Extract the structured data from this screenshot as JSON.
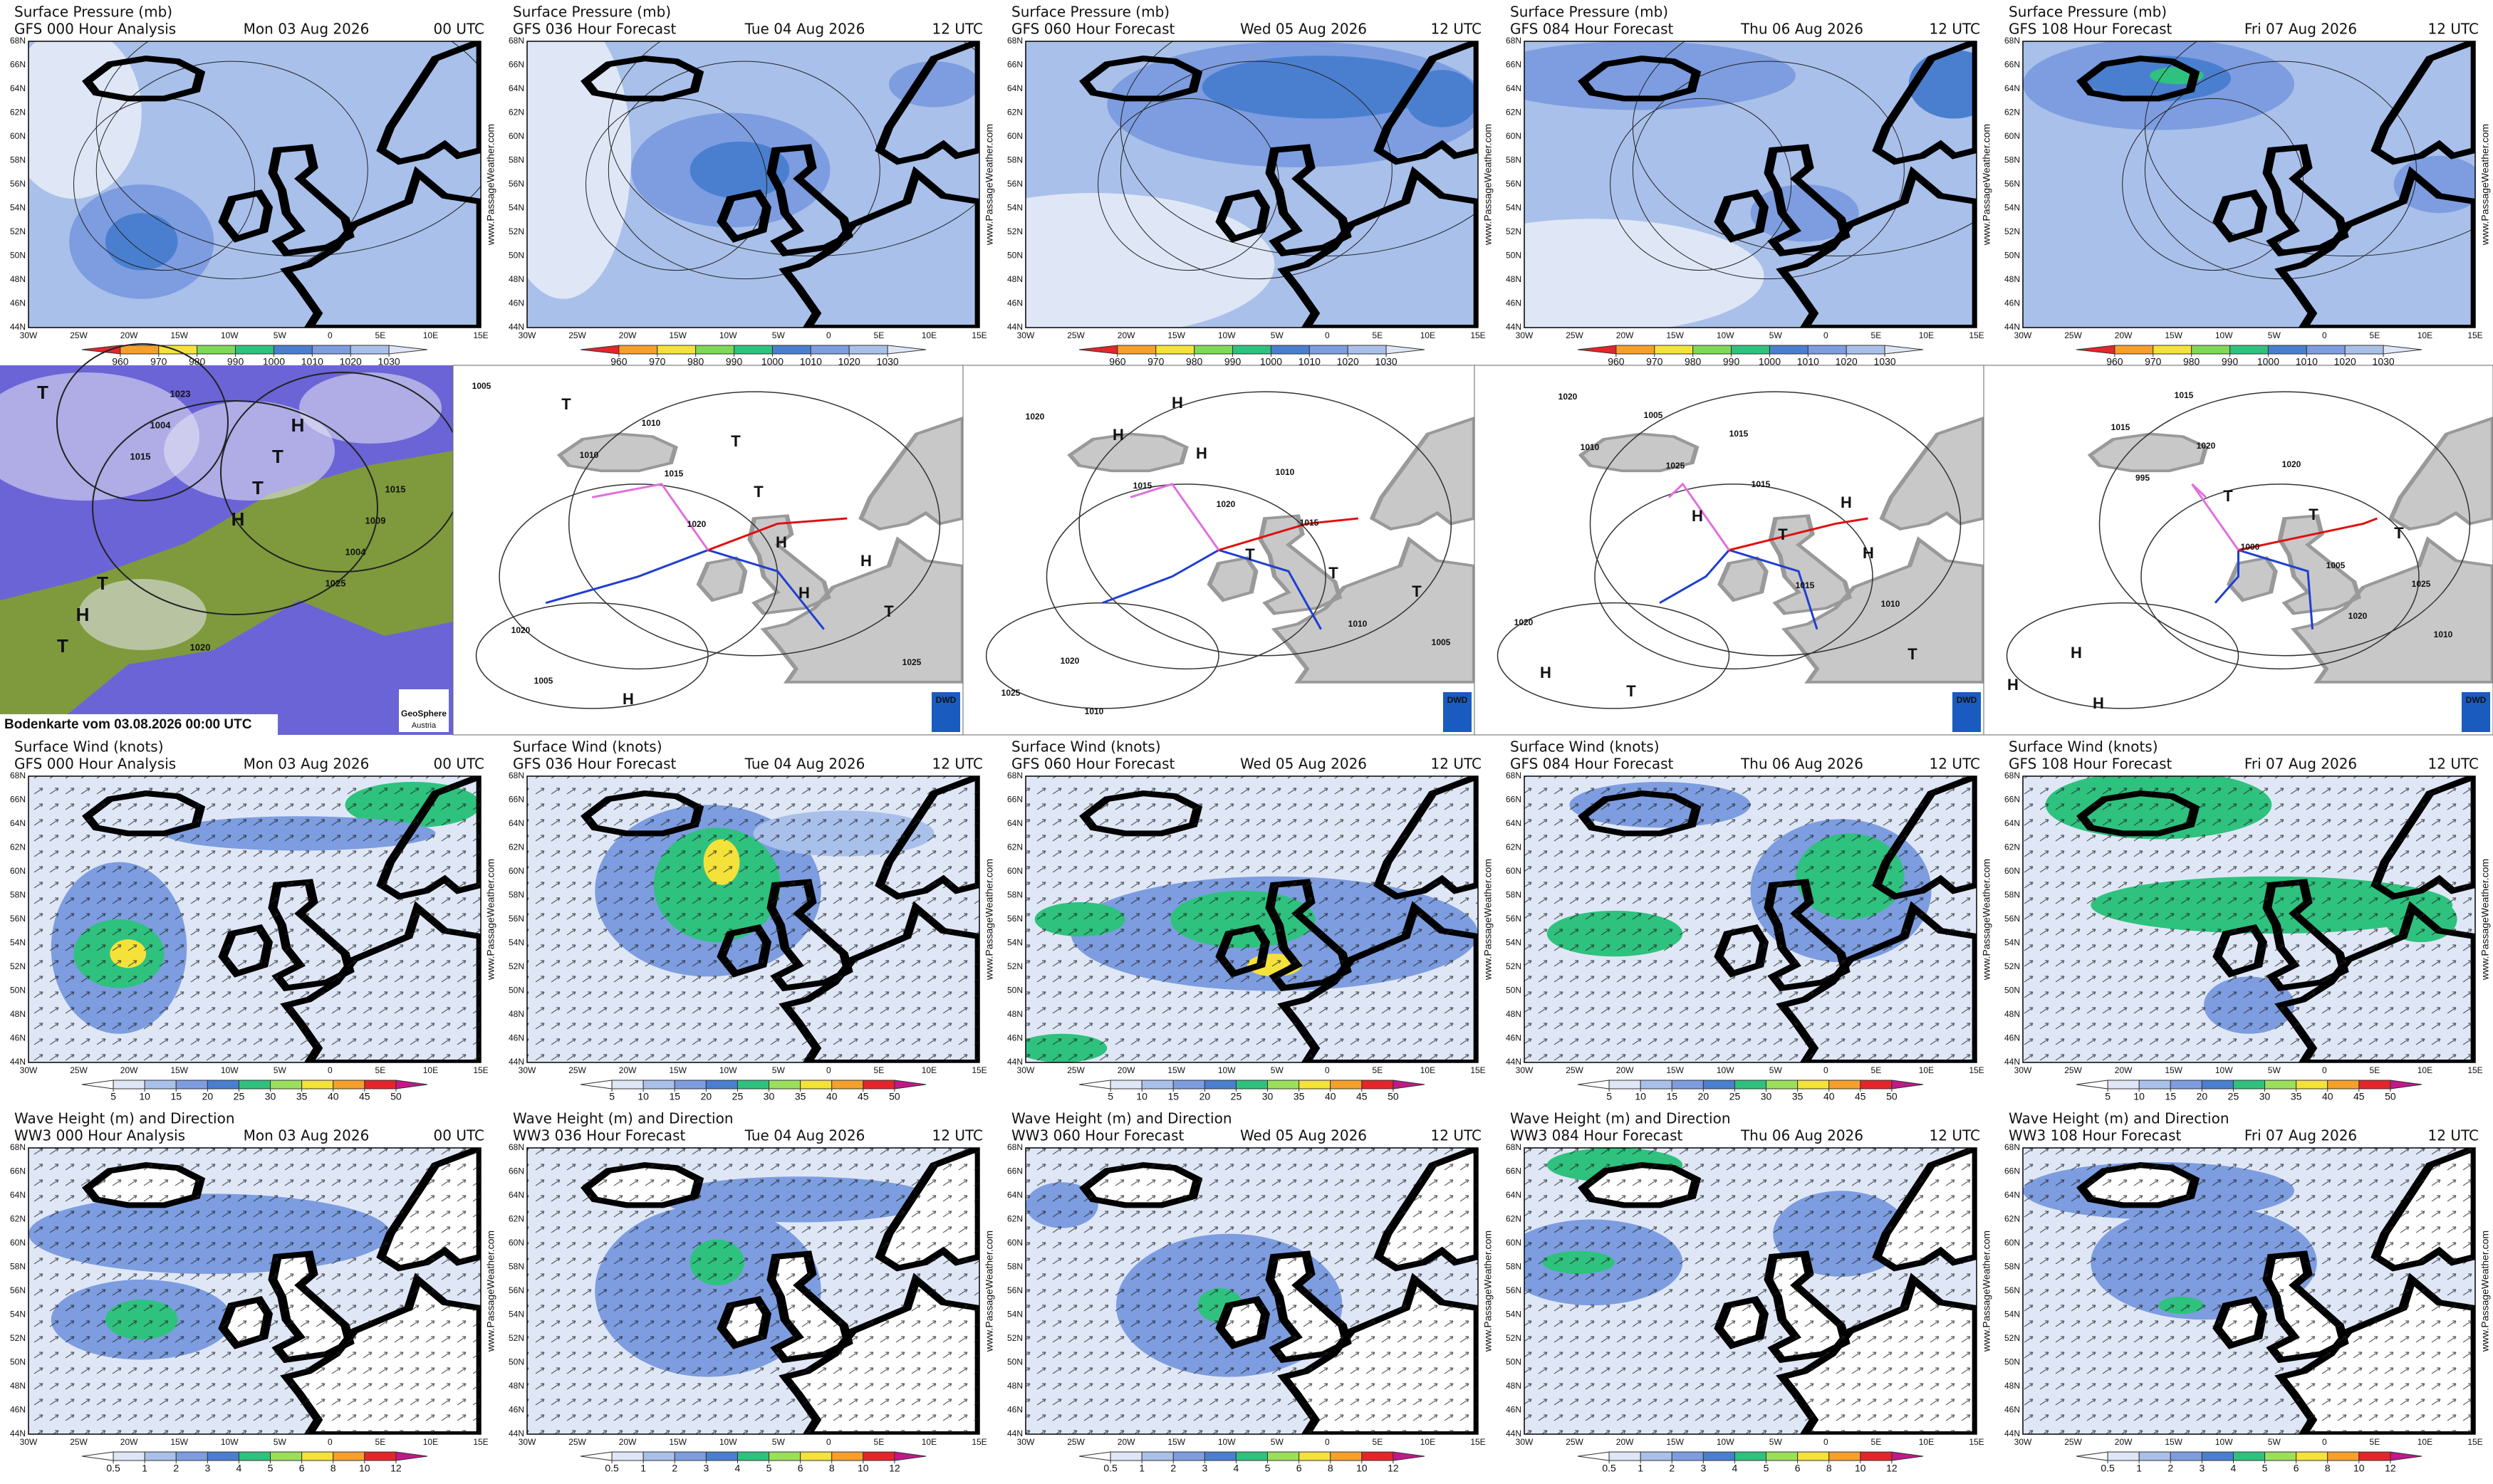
{
  "gfs_rows": [
    {
      "title": "Surface Pressure (mb)",
      "colorbar_ticks": [
        960,
        970,
        980,
        990,
        1000,
        1010,
        1020,
        1030
      ],
      "colorbar_colors": [
        "#e3262a",
        "#f6a02b",
        "#f4e23a",
        "#7ed957",
        "#2ec27e",
        "#4a7fd0",
        "#7d9de0",
        "#a9c0ea",
        "#dfe7f6"
      ],
      "panels": [
        {
          "model": "GFS 000 Hour Analysis",
          "date": "Mon 03 Aug 2026",
          "time": "00 UTC"
        },
        {
          "model": "GFS 036 Hour Forecast",
          "date": "Tue 04 Aug 2026",
          "time": "12 UTC"
        },
        {
          "model": "GFS 060 Hour Forecast",
          "date": "Wed 05 Aug 2026",
          "time": "12 UTC"
        },
        {
          "model": "GFS 084 Hour Forecast",
          "date": "Thu 06 Aug 2026",
          "time": "12 UTC"
        },
        {
          "model": "GFS 108 Hour Forecast",
          "date": "Fri 07 Aug 2026",
          "time": "12 UTC"
        }
      ]
    },
    {
      "title": "Surface Wind (knots)",
      "colorbar_ticks": [
        5,
        10,
        15,
        20,
        25,
        30,
        35,
        40,
        45,
        50
      ],
      "colorbar_colors": [
        "#ffffff",
        "#dfe7f6",
        "#a9c0ea",
        "#7d9de0",
        "#4a7fd0",
        "#2ec27e",
        "#9be05a",
        "#f4e23a",
        "#f6a02b",
        "#e3262a",
        "#c2188a"
      ],
      "panels": [
        {
          "model": "GFS 000 Hour Analysis",
          "date": "Mon 03 Aug 2026",
          "time": "00 UTC"
        },
        {
          "model": "GFS 036 Hour Forecast",
          "date": "Tue 04 Aug 2026",
          "time": "12 UTC"
        },
        {
          "model": "GFS 060 Hour Forecast",
          "date": "Wed 05 Aug 2026",
          "time": "12 UTC"
        },
        {
          "model": "GFS 084 Hour Forecast",
          "date": "Thu 06 Aug 2026",
          "time": "12 UTC"
        },
        {
          "model": "GFS 108 Hour Forecast",
          "date": "Fri 07 Aug 2026",
          "time": "12 UTC"
        }
      ]
    },
    {
      "title": "Wave Height (m) and Direction",
      "colorbar_ticks": [
        0.5,
        1,
        2,
        3,
        4,
        5,
        6,
        8,
        10,
        12
      ],
      "colorbar_colors": [
        "#ffffff",
        "#dfe7f6",
        "#a9c0ea",
        "#7d9de0",
        "#4a7fd0",
        "#2ec27e",
        "#9be05a",
        "#f4e23a",
        "#f6a02b",
        "#e3262a",
        "#c2188a"
      ],
      "panels": [
        {
          "model": "WW3 000 Hour Analysis",
          "date": "Mon 03 Aug 2026",
          "time": "00 UTC"
        },
        {
          "model": "WW3 036 Hour Forecast",
          "date": "Tue 04 Aug 2026",
          "time": "12 UTC"
        },
        {
          "model": "WW3 060 Hour Forecast",
          "date": "Wed 05 Aug 2026",
          "time": "12 UTC"
        },
        {
          "model": "WW3 084 Hour Forecast",
          "date": "Thu 06 Aug 2026",
          "time": "12 UTC"
        },
        {
          "model": "WW3 108 Hour Forecast",
          "date": "Fri 07 Aug 2026",
          "time": "12 UTC"
        }
      ]
    }
  ],
  "lat_labels": [
    "68N",
    "66N",
    "64N",
    "62N",
    "60N",
    "58N",
    "56N",
    "54N",
    "52N",
    "50N",
    "48N",
    "46N",
    "44N"
  ],
  "lon_labels": [
    "30W",
    "25W",
    "20W",
    "15W",
    "10W",
    "5W",
    "0",
    "5E",
    "10E",
    "15E"
  ],
  "watermark": "www.PassageWeather.com",
  "analysis_maps": {
    "satellite": {
      "caption": "Bodenkarte vom 03.08.2026 00:00 UTC",
      "credit": "GeoSphere",
      "credit_sub": "Austria",
      "labels": [
        "T",
        "1015",
        "H",
        "1025",
        "T",
        "1004",
        "T",
        "1004",
        "H",
        "1023",
        "T",
        "1009",
        "T",
        "1020",
        "H",
        "1015"
      ]
    },
    "dwd_logo": "DWD",
    "dwd_panels": [
      {
        "labels": [
          "1005",
          "1010",
          "1020",
          "H",
          "1025",
          "T",
          "1015",
          "H",
          "T",
          "1005",
          "1010",
          "T",
          "H",
          "1020",
          "H",
          "T"
        ]
      },
      {
        "labels": [
          "1020",
          "1015",
          "T",
          "1010",
          "1025",
          "H",
          "1020",
          "T",
          "1005",
          "1010",
          "H",
          "1015",
          "T",
          "1020",
          "H",
          "1010"
        ]
      },
      {
        "labels": [
          "1010",
          "H",
          "1015",
          "T",
          "1020",
          "1025",
          "T",
          "1010",
          "H",
          "1005",
          "1015",
          "H",
          "1020",
          "T",
          "1015",
          "H"
        ]
      },
      {
        "labels": [
          "995",
          "1000",
          "1020",
          "H",
          "1015",
          "T",
          "1005",
          "1010",
          "H",
          "1020",
          "T",
          "1025",
          "H",
          "1015",
          "1020",
          "T"
        ]
      }
    ]
  }
}
